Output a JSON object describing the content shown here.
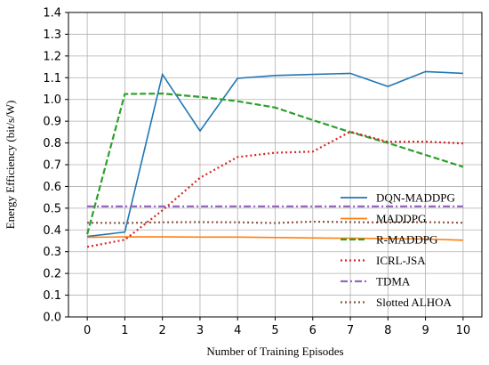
{
  "chart_data": {
    "type": "line",
    "xlabel": "Number of Training Episodes",
    "ylabel": "Energy Efficiency  (bit/s/W)",
    "x": [
      0,
      1,
      2,
      3,
      4,
      5,
      6,
      7,
      8,
      9,
      10
    ],
    "xlim": [
      -0.5,
      10.5
    ],
    "ylim": [
      0.0,
      1.4
    ],
    "xticks": [
      "0",
      "1",
      "2",
      "3",
      "4",
      "5",
      "6",
      "7",
      "8",
      "9",
      "10"
    ],
    "yticks": [
      "0.0",
      "0.1",
      "0.2",
      "0.3",
      "0.4",
      "0.5",
      "0.6",
      "0.7",
      "0.8",
      "0.9",
      "1.0",
      "1.1",
      "1.2",
      "1.3",
      "1.4"
    ],
    "grid": true,
    "legend_position": "lower-right",
    "series": [
      {
        "name": "DQN-MADDPG",
        "color": "#1f77b4",
        "dash": "solid",
        "values": [
          0.37,
          0.39,
          1.115,
          0.855,
          1.097,
          1.11,
          1.115,
          1.12,
          1.06,
          1.128,
          1.12
        ]
      },
      {
        "name": "MADDPG",
        "color": "#ff7f0e",
        "dash": "solid",
        "values": [
          0.366,
          0.368,
          0.368,
          0.367,
          0.367,
          0.365,
          0.363,
          0.362,
          0.36,
          0.358,
          0.353
        ]
      },
      {
        "name": "R-MADDPG",
        "color": "#2ca02c",
        "dash": "dashed",
        "values": [
          0.38,
          1.025,
          1.027,
          1.012,
          0.992,
          0.963,
          0.905,
          0.85,
          0.8,
          0.745,
          0.69
        ]
      },
      {
        "name": "ICRL-JSA",
        "color": "#d62728",
        "dash": "dotted",
        "values": [
          0.322,
          0.355,
          0.49,
          0.64,
          0.735,
          0.755,
          0.76,
          0.852,
          0.805,
          0.806,
          0.798
        ]
      },
      {
        "name": "TDMA",
        "color": "#9467bd",
        "dash": "dashdot",
        "values": [
          0.508,
          0.508,
          0.508,
          0.508,
          0.508,
          0.508,
          0.508,
          0.508,
          0.508,
          0.508,
          0.508
        ]
      },
      {
        "name": "Slotted ALHOA",
        "color": "#8c564b",
        "dash": "dotted",
        "values": [
          0.433,
          0.432,
          0.435,
          0.436,
          0.435,
          0.432,
          0.438,
          0.436,
          0.434,
          0.436,
          0.433
        ]
      }
    ]
  }
}
